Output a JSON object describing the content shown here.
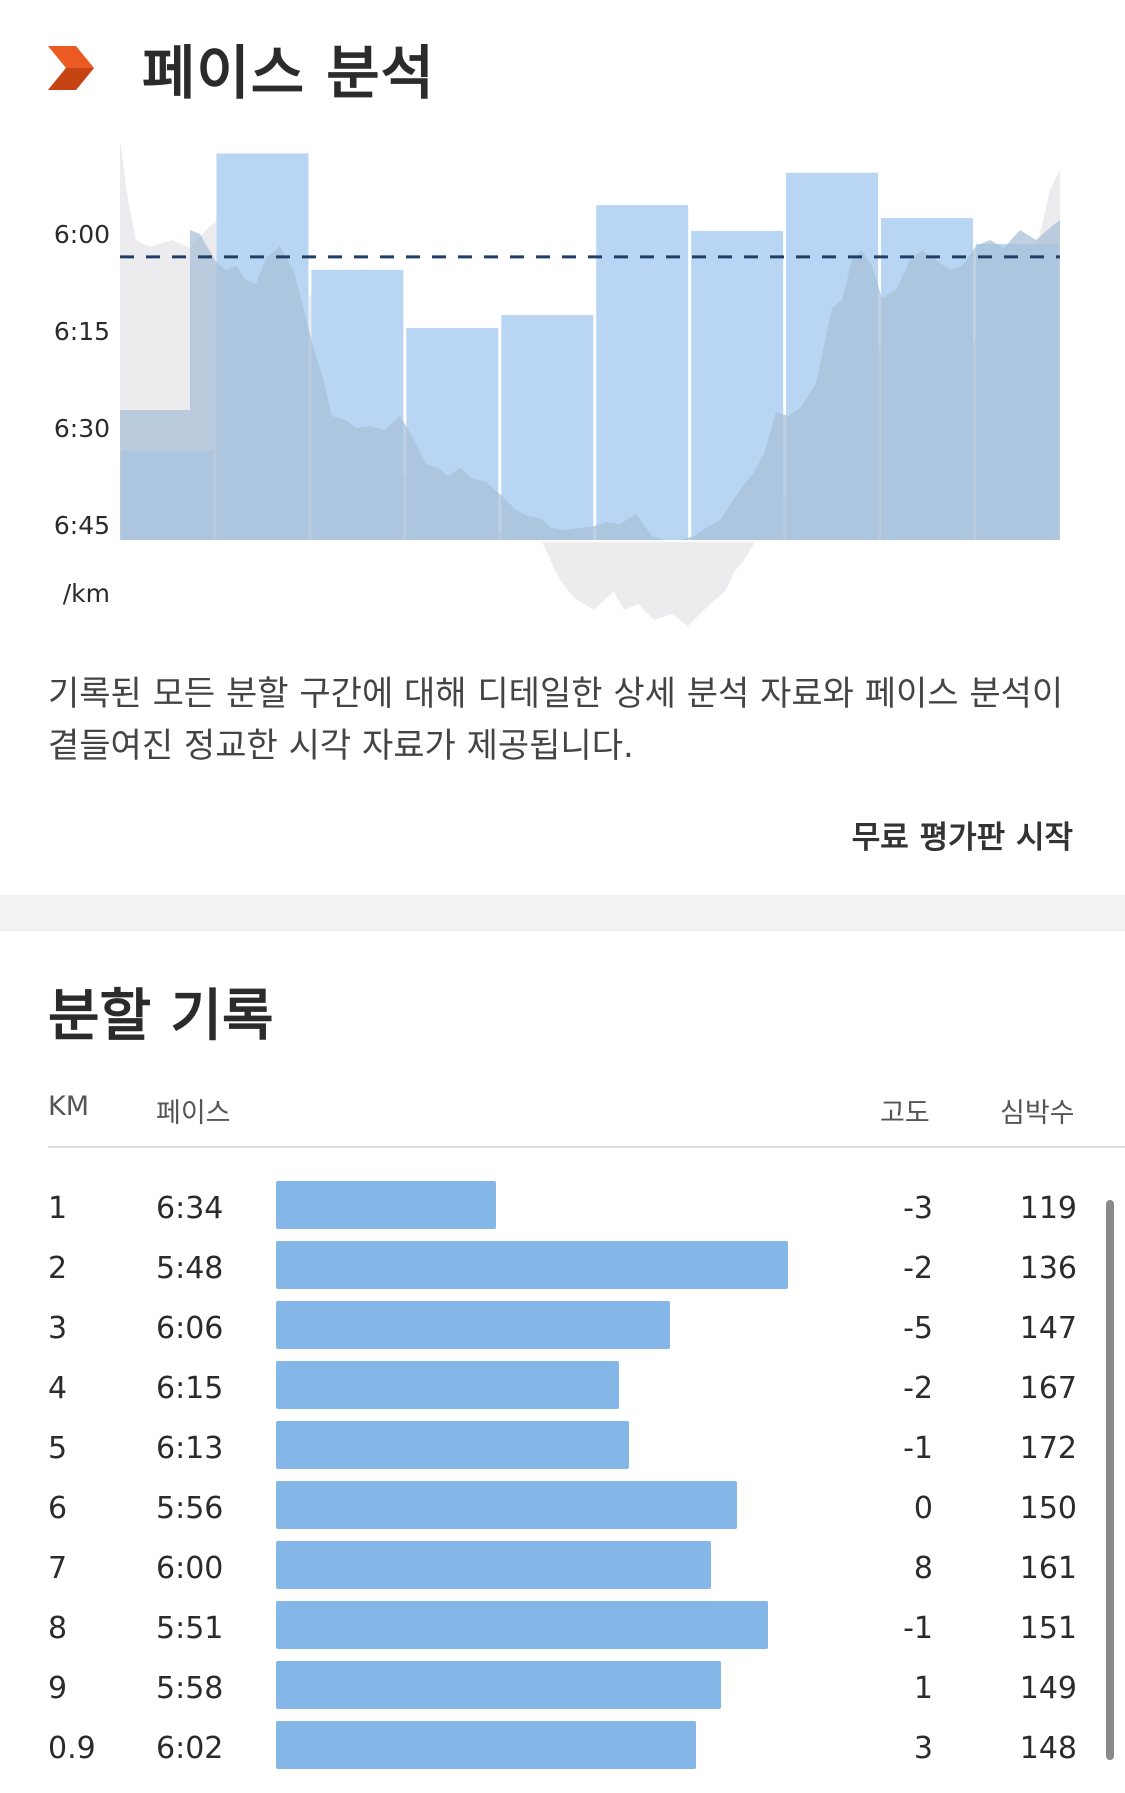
{
  "pace_analysis": {
    "title": "페이스 분석",
    "icon": "orange-chevron-icon",
    "accent_color": "#ec5a24",
    "description": "기록된 모든 분할 구간에 대해 디테일한 상세 분석 자료와 페이스 분석이 곁들여진 정교한 시각 자료가 제공됩니다.",
    "trial_label": "무료 평가판 시작"
  },
  "chart_data": {
    "type": "bar",
    "categories": [
      "1",
      "2",
      "3",
      "4",
      "5",
      "6",
      "7",
      "8",
      "9",
      "0.9"
    ],
    "series": [
      {
        "values": [
          "6:34",
          "5:48",
          "6:06",
          "6:15",
          "6:13",
          "5:56",
          "6:00",
          "5:51",
          "5:58",
          "6:02"
        ]
      }
    ],
    "value_unit": "min/km",
    "y_tick_labels": [
      "6:00",
      "6:15",
      "6:30",
      "6:45",
      "/km"
    ],
    "y_axis_inverted": true,
    "average_line": true,
    "background_area": "continuous pace trace (grey)",
    "bar_color": "#b8d6f3",
    "overlay_color": "#a3bed8",
    "avg_line_color": "#1f3f66"
  },
  "splits": {
    "title": "분할 기록",
    "headers": {
      "km": "KM",
      "pace": "페이스",
      "elev": "고도",
      "hr": "심박수"
    },
    "bar_color": "#84b6e8",
    "rows": [
      {
        "km": "1",
        "pace": "6:34",
        "pace_fraction": 0.43,
        "elev": "-3",
        "hr": "119"
      },
      {
        "km": "2",
        "pace": "5:48",
        "pace_fraction": 1.0,
        "elev": "-2",
        "hr": "136"
      },
      {
        "km": "3",
        "pace": "6:06",
        "pace_fraction": 0.77,
        "elev": "-5",
        "hr": "147"
      },
      {
        "km": "4",
        "pace": "6:15",
        "pace_fraction": 0.67,
        "elev": "-2",
        "hr": "167"
      },
      {
        "km": "5",
        "pace": "6:13",
        "pace_fraction": 0.69,
        "elev": "-1",
        "hr": "172"
      },
      {
        "km": "6",
        "pace": "5:56",
        "pace_fraction": 0.9,
        "elev": "0",
        "hr": "150"
      },
      {
        "km": "7",
        "pace": "6:00",
        "pace_fraction": 0.85,
        "elev": "8",
        "hr": "161"
      },
      {
        "km": "8",
        "pace": "5:51",
        "pace_fraction": 0.96,
        "elev": "-1",
        "hr": "151"
      },
      {
        "km": "9",
        "pace": "5:58",
        "pace_fraction": 0.87,
        "elev": "1",
        "hr": "149"
      },
      {
        "km": "0.9",
        "pace": "6:02",
        "pace_fraction": 0.82,
        "elev": "3",
        "hr": "148"
      }
    ]
  }
}
